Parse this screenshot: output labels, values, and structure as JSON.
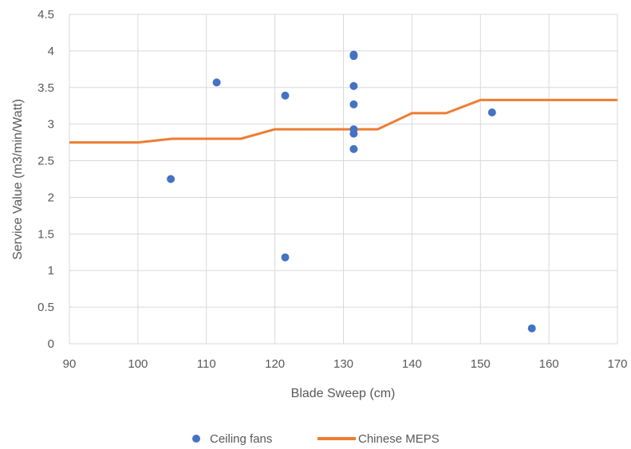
{
  "chart_data": {
    "type": "scatter",
    "title": "",
    "xlabel": "Blade Sweep (cm)",
    "ylabel": "Service Value (m3/min/Watt)",
    "xlim": [
      90,
      170
    ],
    "ylim": [
      0,
      4.5
    ],
    "xticks": [
      90,
      100,
      110,
      120,
      130,
      140,
      150,
      160,
      170
    ],
    "yticks": [
      0,
      0.5,
      1,
      1.5,
      2,
      2.5,
      3,
      3.5,
      4,
      4.5
    ],
    "x_tick_labels": [
      "90",
      "100",
      "110",
      "120",
      "130",
      "140",
      "150",
      "160",
      "170"
    ],
    "y_tick_labels": [
      "0",
      "0.5",
      "1",
      "1.5",
      "2",
      "2.5",
      "3",
      "3.5",
      "4",
      "4.5"
    ],
    "grid": true,
    "legend_position": "bottom",
    "series": [
      {
        "name": "Ceiling fans",
        "kind": "scatter",
        "color": "#4472c4",
        "points": [
          {
            "x": 104.8,
            "y": 2.25
          },
          {
            "x": 111.5,
            "y": 3.57
          },
          {
            "x": 121.5,
            "y": 3.39
          },
          {
            "x": 121.5,
            "y": 1.18
          },
          {
            "x": 131.5,
            "y": 3.95
          },
          {
            "x": 131.5,
            "y": 3.93
          },
          {
            "x": 131.5,
            "y": 3.52
          },
          {
            "x": 131.5,
            "y": 3.27
          },
          {
            "x": 131.5,
            "y": 2.93
          },
          {
            "x": 131.5,
            "y": 2.87
          },
          {
            "x": 131.5,
            "y": 2.66
          },
          {
            "x": 151.7,
            "y": 3.16
          },
          {
            "x": 157.5,
            "y": 0.21
          }
        ]
      },
      {
        "name": "Chinese MEPS",
        "kind": "line",
        "color": "#ed7d31",
        "points": [
          {
            "x": 90,
            "y": 2.75
          },
          {
            "x": 100,
            "y": 2.75
          },
          {
            "x": 105,
            "y": 2.8
          },
          {
            "x": 110,
            "y": 2.8
          },
          {
            "x": 115,
            "y": 2.8
          },
          {
            "x": 120,
            "y": 2.93
          },
          {
            "x": 125,
            "y": 2.93
          },
          {
            "x": 130,
            "y": 2.93
          },
          {
            "x": 135,
            "y": 2.93
          },
          {
            "x": 140,
            "y": 3.15
          },
          {
            "x": 145,
            "y": 3.15
          },
          {
            "x": 150,
            "y": 3.33
          },
          {
            "x": 155,
            "y": 3.33
          },
          {
            "x": 160,
            "y": 3.33
          },
          {
            "x": 165,
            "y": 3.33
          },
          {
            "x": 170,
            "y": 3.33
          }
        ]
      }
    ]
  }
}
